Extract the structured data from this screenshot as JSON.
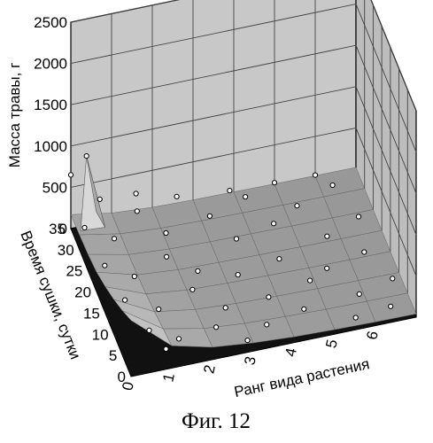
{
  "caption": "Фиг. 12",
  "chart_data": {
    "type": "surface",
    "title": "",
    "xlabel": "Ранг вида растения",
    "ylabel": "Время сушки, сутки",
    "zlabel": "Масса травы, г",
    "xlim": [
      0,
      7
    ],
    "ylim": [
      0,
      35
    ],
    "zlim": [
      0,
      2500
    ],
    "x_ticks": [
      "0",
      "1",
      "2",
      "3",
      "4",
      "5",
      "6"
    ],
    "y_ticks": [
      "0",
      "5",
      "10",
      "15",
      "20",
      "25",
      "30",
      "35"
    ],
    "z_ticks": [
      "0",
      "500",
      "1000",
      "1500",
      "2000",
      "2500"
    ],
    "grid": true,
    "x_values": [
      0,
      1,
      2,
      3,
      4,
      5,
      6,
      7
    ],
    "y_values": [
      0,
      5,
      10,
      15,
      20,
      25,
      30,
      35
    ],
    "z_values": [
      [
        680,
        270,
        150,
        100,
        70,
        55,
        45,
        40
      ],
      [
        540,
        220,
        120,
        80,
        60,
        45,
        40,
        35
      ],
      [
        420,
        170,
        95,
        65,
        50,
        40,
        35,
        30
      ],
      [
        320,
        130,
        75,
        55,
        45,
        35,
        30,
        28
      ],
      [
        240,
        105,
        65,
        50,
        40,
        32,
        28,
        25
      ],
      [
        200,
        95,
        60,
        45,
        38,
        30,
        26,
        24
      ],
      [
        180,
        90,
        55,
        42,
        35,
        28,
        25,
        23
      ],
      [
        170,
        85,
        52,
        40,
        33,
        27,
        24,
        22
      ]
    ],
    "peak": {
      "x": 0.3,
      "y": 33,
      "z": 950
    },
    "points": [
      [
        0,
        35,
        650
      ],
      [
        0.3,
        33,
        950
      ],
      [
        0.5,
        30,
        560
      ],
      [
        0,
        27,
        420
      ],
      [
        0.6,
        24,
        380
      ],
      [
        0.2,
        20,
        300
      ],
      [
        0.8,
        17,
        260
      ],
      [
        0.4,
        13,
        220
      ],
      [
        1.1,
        10,
        190
      ],
      [
        0.7,
        6,
        180
      ],
      [
        1.3,
        3,
        170
      ],
      [
        0.9,
        1,
        190
      ],
      [
        1.5,
        32,
        210
      ],
      [
        2.0,
        27,
        150
      ],
      [
        1.8,
        22,
        140
      ],
      [
        2.4,
        18,
        110
      ],
      [
        2.1,
        14,
        120
      ],
      [
        2.7,
        9,
        95
      ],
      [
        2.3,
        5,
        105
      ],
      [
        2.9,
        1,
        90
      ],
      [
        3.2,
        30,
        80
      ],
      [
        3.6,
        24,
        70
      ],
      [
        3.3,
        16,
        75
      ],
      [
        3.8,
        10,
        60
      ],
      [
        3.5,
        4,
        65
      ],
      [
        4.2,
        33,
        55
      ],
      [
        4.6,
        26,
        50
      ],
      [
        4.4,
        18,
        52
      ],
      [
        4.9,
        12,
        45
      ],
      [
        4.5,
        6,
        48
      ],
      [
        5.3,
        29,
        40
      ],
      [
        5.7,
        21,
        38
      ],
      [
        5.4,
        14,
        40
      ],
      [
        5.9,
        7,
        35
      ],
      [
        5.6,
        2,
        36
      ],
      [
        6.3,
        32,
        32
      ],
      [
        6.6,
        24,
        30
      ],
      [
        6.4,
        16,
        31
      ],
      [
        6.8,
        9,
        28
      ],
      [
        6.5,
        3,
        29
      ],
      [
        1.6,
        35,
        260
      ],
      [
        2.6,
        35,
        120
      ],
      [
        3.9,
        35,
        60
      ],
      [
        5.0,
        35,
        42
      ],
      [
        6.0,
        35,
        32
      ]
    ]
  }
}
